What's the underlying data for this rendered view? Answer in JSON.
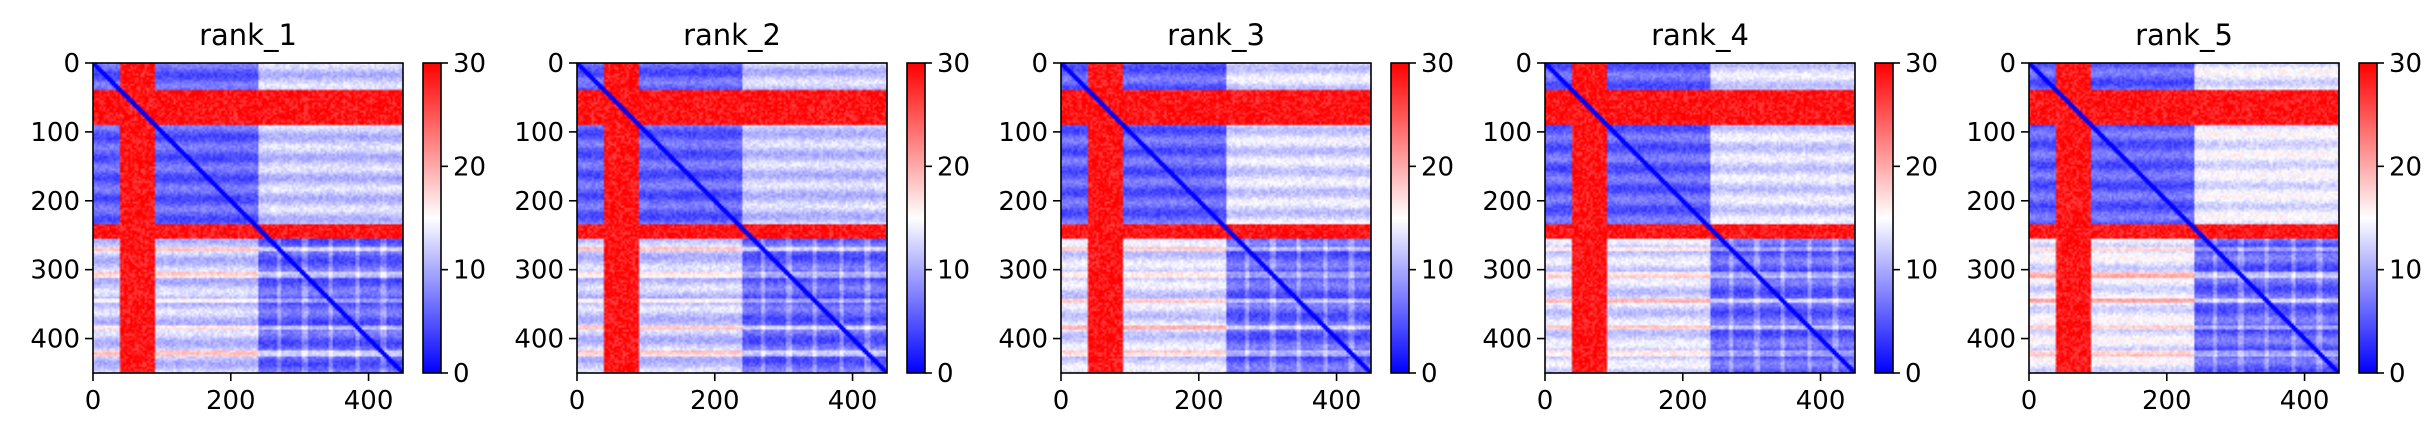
{
  "chart_data": [
    {
      "type": "heatmap",
      "title": "rank_1",
      "matrix_size": 450,
      "xlim": [
        0,
        450
      ],
      "ylim": [
        450,
        0
      ],
      "x_ticks": [
        "0",
        "200",
        "400"
      ],
      "y_ticks": [
        "0",
        "100",
        "200",
        "300",
        "400"
      ],
      "colorbar": {
        "min": 0,
        "max": 30,
        "ticks": [
          "0",
          "10",
          "20",
          "30"
        ]
      },
      "high_bands": {
        "rows": [
          [
            40,
            90
          ],
          [
            235,
            255
          ]
        ],
        "cols": [
          [
            40,
            90
          ]
        ]
      },
      "diagonal": "low",
      "inter_domain_value": 10
    },
    {
      "type": "heatmap",
      "title": "rank_2",
      "matrix_size": 450,
      "xlim": [
        0,
        450
      ],
      "ylim": [
        450,
        0
      ],
      "x_ticks": [
        "0",
        "200",
        "400"
      ],
      "y_ticks": [
        "0",
        "100",
        "200",
        "300",
        "400"
      ],
      "colorbar": {
        "min": 0,
        "max": 30,
        "ticks": [
          "0",
          "10",
          "20",
          "30"
        ]
      },
      "high_bands": {
        "rows": [
          [
            40,
            90
          ],
          [
            235,
            255
          ]
        ],
        "cols": [
          [
            40,
            90
          ]
        ]
      },
      "diagonal": "low",
      "inter_domain_value": 10
    },
    {
      "type": "heatmap",
      "title": "rank_3",
      "matrix_size": 450,
      "xlim": [
        0,
        450
      ],
      "ylim": [
        450,
        0
      ],
      "x_ticks": [
        "0",
        "200",
        "400"
      ],
      "y_ticks": [
        "0",
        "100",
        "200",
        "300",
        "400"
      ],
      "colorbar": {
        "min": 0,
        "max": 30,
        "ticks": [
          "0",
          "10",
          "20",
          "30"
        ]
      },
      "high_bands": {
        "rows": [
          [
            40,
            90
          ],
          [
            235,
            255
          ]
        ],
        "cols": [
          [
            40,
            90
          ]
        ]
      },
      "diagonal": "low",
      "inter_domain_value": 11
    },
    {
      "type": "heatmap",
      "title": "rank_4",
      "matrix_size": 450,
      "xlim": [
        0,
        450
      ],
      "ylim": [
        450,
        0
      ],
      "x_ticks": [
        "0",
        "200",
        "400"
      ],
      "y_ticks": [
        "0",
        "100",
        "200",
        "300",
        "400"
      ],
      "colorbar": {
        "min": 0,
        "max": 30,
        "ticks": [
          "0",
          "10",
          "20",
          "30"
        ]
      },
      "high_bands": {
        "rows": [
          [
            40,
            90
          ],
          [
            235,
            255
          ]
        ],
        "cols": [
          [
            40,
            90
          ]
        ]
      },
      "diagonal": "low",
      "inter_domain_value": 11
    },
    {
      "type": "heatmap",
      "title": "rank_5",
      "matrix_size": 450,
      "xlim": [
        0,
        450
      ],
      "ylim": [
        450,
        0
      ],
      "x_ticks": [
        "0",
        "200",
        "400"
      ],
      "y_ticks": [
        "0",
        "100",
        "200",
        "300",
        "400"
      ],
      "colorbar": {
        "min": 0,
        "max": 30,
        "ticks": [
          "0",
          "10",
          "20",
          "30"
        ]
      },
      "high_bands": {
        "rows": [
          [
            40,
            90
          ],
          [
            235,
            255
          ]
        ],
        "cols": [
          [
            40,
            90
          ]
        ]
      },
      "diagonal": "low",
      "inter_domain_value": 12
    }
  ],
  "colormap": {
    "low": "#0000ff",
    "mid": "#ffffff",
    "high": "#ff0000"
  }
}
